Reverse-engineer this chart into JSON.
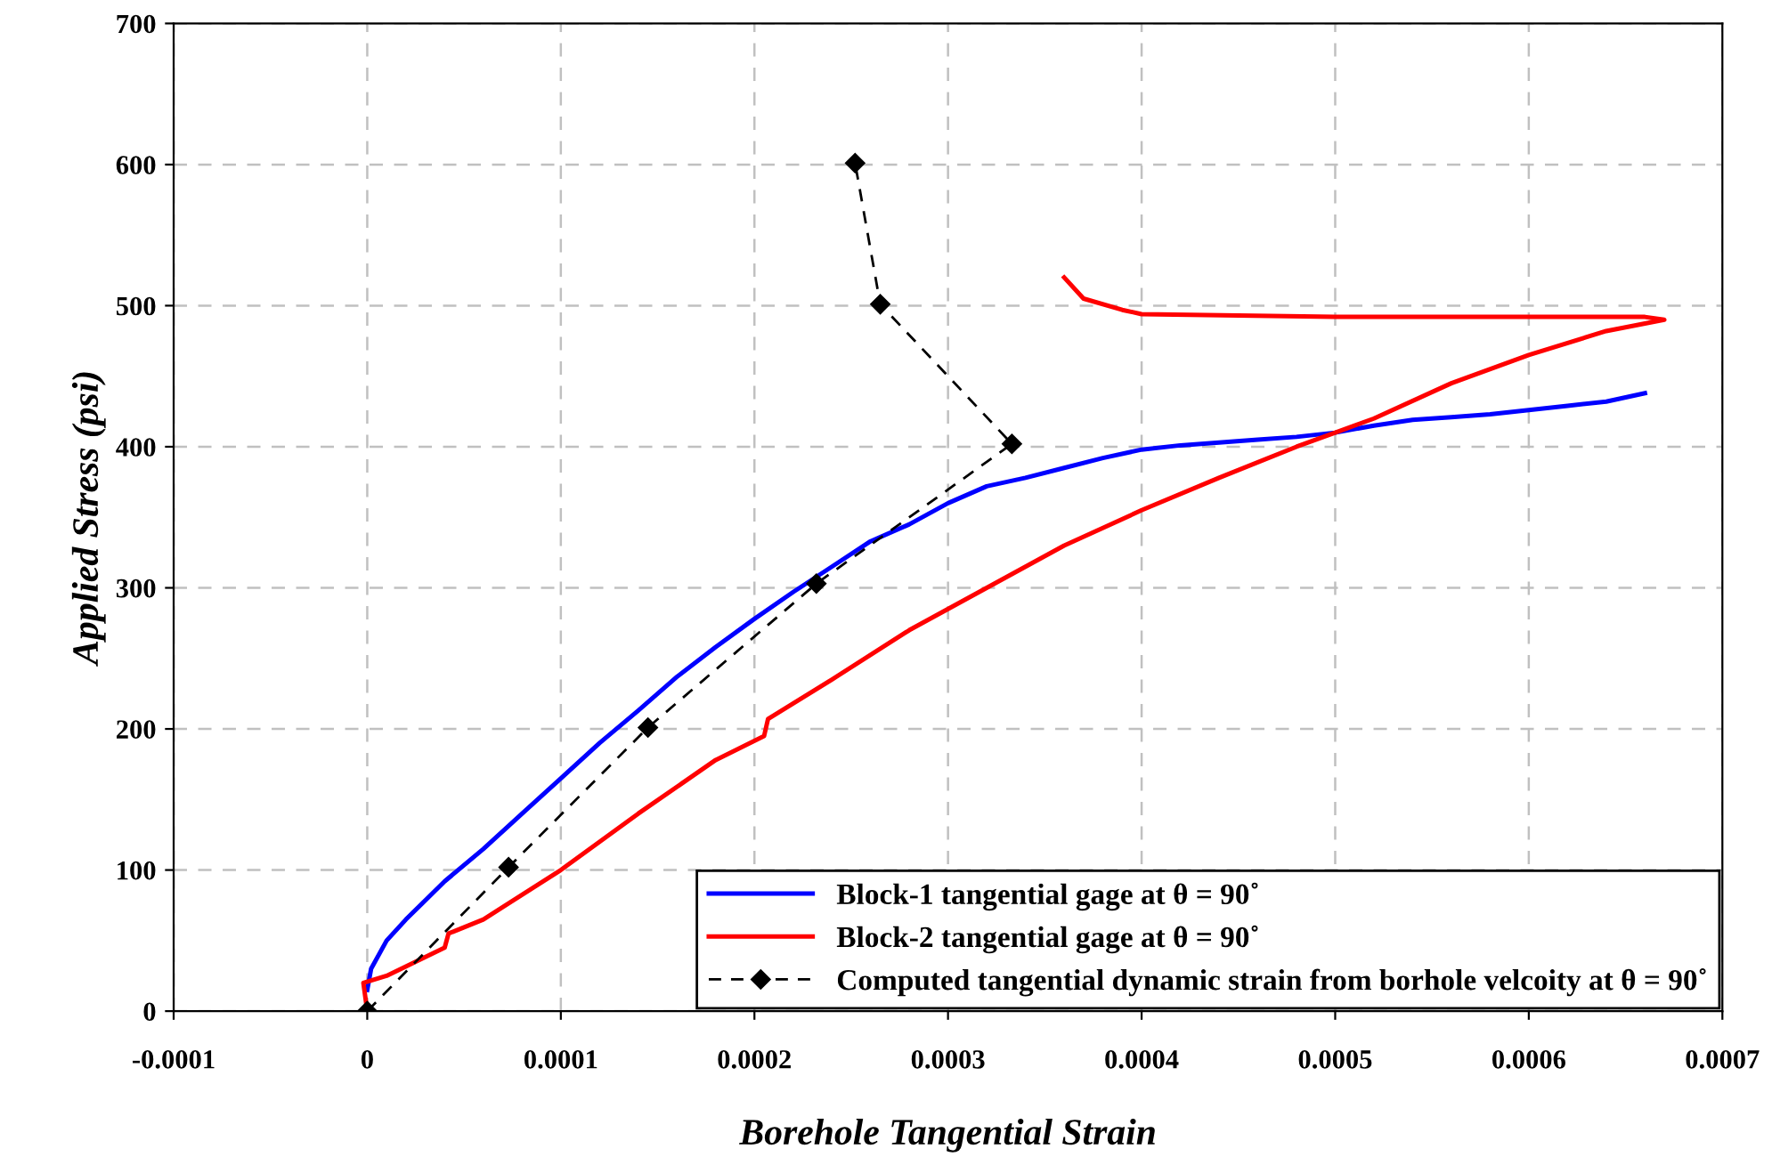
{
  "chart_data": {
    "type": "line",
    "xlabel": "Borehole Tangential Strain",
    "ylabel": "Applied Stress (psi)",
    "xlim": [
      -0.0001,
      0.0007
    ],
    "xticks": [
      -0.0001,
      0,
      0.0001,
      0.0002,
      0.0003,
      0.0004,
      0.0005,
      0.0006,
      0.0007
    ],
    "ylim": [
      0,
      700
    ],
    "yticks": [
      0,
      100,
      200,
      300,
      400,
      500,
      600,
      700
    ],
    "grid": true,
    "legend": "bottom right",
    "series": [
      {
        "name": "Block-1 tangential gage at θ = 90˚",
        "color": "#0000ff",
        "line_style": "solid",
        "marker": "none",
        "x": [
          0,
          2e-06,
          1e-05,
          2e-05,
          4e-05,
          6e-05,
          8e-05,
          0.0001,
          0.00012,
          0.00014,
          0.00016,
          0.00018,
          0.0002,
          0.00022,
          0.00024,
          0.00026,
          0.00028,
          0.0003,
          0.00032,
          0.00034,
          0.00036,
          0.00038,
          0.0004,
          0.00042,
          0.00044,
          0.00046,
          0.00048,
          0.0005,
          0.00052,
          0.00054,
          0.00056,
          0.00058,
          0.0006,
          0.00062,
          0.00064,
          0.00066
        ],
        "values": [
          15,
          30,
          50,
          65,
          92,
          115,
          140,
          165,
          190,
          213,
          237,
          258,
          278,
          297,
          315,
          333,
          345,
          360,
          372,
          378,
          385,
          392,
          398,
          401,
          403,
          405,
          407,
          410,
          415,
          419,
          421,
          423,
          426,
          429,
          432,
          438
        ]
      },
      {
        "name": "Block-2 tangential gage at θ = 90˚",
        "color": "#ff0000",
        "line_style": "solid",
        "marker": "none",
        "x": [
          0,
          -2e-06,
          1e-05,
          4e-05,
          4.2e-05,
          6e-05,
          0.0001,
          0.00014,
          0.00018,
          0.000205,
          0.000207,
          0.00024,
          0.00028,
          0.00032,
          0.00036,
          0.0004,
          0.00044,
          0.00048,
          0.0005,
          0.00052,
          0.00056,
          0.0006,
          0.00064,
          0.00067,
          0.00066,
          0.0006,
          0.0005,
          0.00045,
          0.0004,
          0.00039,
          0.00037,
          0.00036
        ],
        "values": [
          0,
          20,
          25,
          45,
          55,
          65,
          100,
          140,
          178,
          195,
          207,
          235,
          270,
          300,
          330,
          355,
          378,
          400,
          410,
          420,
          445,
          465,
          482,
          490,
          492,
          492,
          492,
          493,
          494,
          497,
          505,
          520
        ]
      },
      {
        "name": "Computed tangential dynamic strain from borhole velcoity at θ = 90˚",
        "color": "#000000",
        "line_style": "dashed",
        "marker": "diamond",
        "x": [
          0,
          7.3e-05,
          0.000145,
          0.000232,
          0.000333,
          0.000265,
          0.000252
        ],
        "values": [
          0,
          102,
          201,
          303,
          402,
          501,
          601
        ]
      }
    ]
  }
}
